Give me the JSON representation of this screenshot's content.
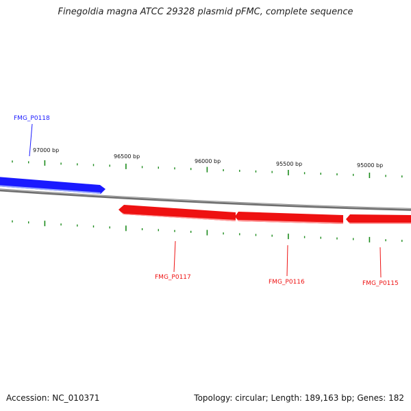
{
  "title": "Finegoldia magna ATCC 29328 plasmid pFMC, complete sequence",
  "footer": {
    "accession": "Accession: NC_010371",
    "summary": "Topology: circular; Length: 189,163 bp; Genes: 182"
  },
  "colors": {
    "forward_gene": "#1a1aff",
    "reverse_gene": "#ee1111",
    "tick": "#1a8a1a",
    "backbone": "#888888"
  },
  "ruler": {
    "labels": [
      "97000 bp",
      "96500 bp",
      "96000 bp",
      "95500 bp",
      "95000 bp"
    ]
  },
  "genes": [
    {
      "name": "FMG_P0118",
      "strand": "forward"
    },
    {
      "name": "FMG_P0117",
      "strand": "reverse"
    },
    {
      "name": "FMG_P0116",
      "strand": "reverse"
    },
    {
      "name": "FMG_P0115",
      "strand": "reverse"
    }
  ]
}
